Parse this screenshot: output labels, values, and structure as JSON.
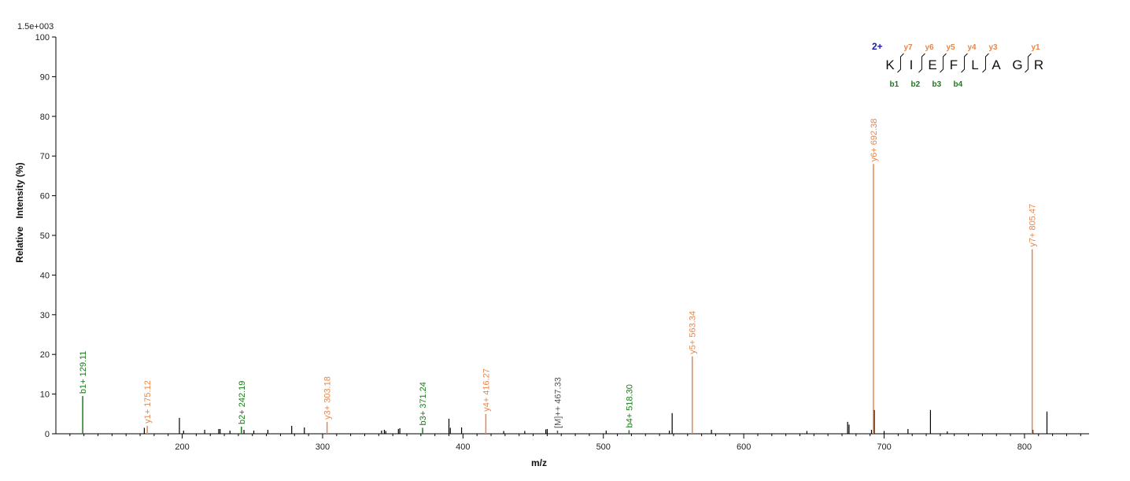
{
  "chart_data": {
    "type": "bar",
    "title": "",
    "scale_label": "1.5e+003",
    "xlabel": "m/z",
    "ylabel": "Relative   Intensity (%)",
    "xlim": [
      110,
      846
    ],
    "ylim": [
      0,
      100
    ],
    "x_ticks": [
      200,
      300,
      400,
      500,
      600,
      700,
      800
    ],
    "y_ticks": [
      0,
      10,
      20,
      30,
      40,
      50,
      60,
      70,
      80,
      90,
      100
    ],
    "colors": {
      "b_ion": "#1a7a1a",
      "y_ion": "#e8864a",
      "precursor": "#555555",
      "unassigned": "#000000",
      "charge": "#1a1aaa"
    },
    "annotated_peaks": [
      {
        "mz": 129.11,
        "intensity": 9.5,
        "ion": "b",
        "label": "b1+ 129.11"
      },
      {
        "mz": 175.12,
        "intensity": 2.0,
        "ion": "y",
        "label": "y1+ 175.12"
      },
      {
        "mz": 242.19,
        "intensity": 1.8,
        "ion": "b",
        "label": "b2+ 242.19"
      },
      {
        "mz": 303.18,
        "intensity": 3.0,
        "ion": "y",
        "label": "y3+ 303.18"
      },
      {
        "mz": 371.24,
        "intensity": 1.5,
        "ion": "b",
        "label": "b3+ 371.24"
      },
      {
        "mz": 416.27,
        "intensity": 5.0,
        "ion": "y",
        "label": "y4+ 416.27"
      },
      {
        "mz": 467.33,
        "intensity": 0.8,
        "ion": "precursor",
        "label": "[M]++ 467.33"
      },
      {
        "mz": 518.3,
        "intensity": 0.9,
        "ion": "b",
        "label": "b4+ 518.30"
      },
      {
        "mz": 563.34,
        "intensity": 19.5,
        "ion": "y",
        "label": "y5+ 563.34"
      },
      {
        "mz": 692.38,
        "intensity": 68.0,
        "ion": "y",
        "label": "y6+ 692.38"
      },
      {
        "mz": 805.47,
        "intensity": 46.5,
        "ion": "y",
        "label": "y7+ 805.47"
      }
    ],
    "other_peaks": [
      {
        "mz": 173,
        "intensity": 1.5
      },
      {
        "mz": 198,
        "intensity": 4.0
      },
      {
        "mz": 201,
        "intensity": 0.8
      },
      {
        "mz": 216,
        "intensity": 1.0
      },
      {
        "mz": 226,
        "intensity": 1.2
      },
      {
        "mz": 227,
        "intensity": 1.2
      },
      {
        "mz": 234,
        "intensity": 0.8
      },
      {
        "mz": 244,
        "intensity": 1.0
      },
      {
        "mz": 251,
        "intensity": 0.8
      },
      {
        "mz": 261,
        "intensity": 1.0
      },
      {
        "mz": 278,
        "intensity": 2.0
      },
      {
        "mz": 287,
        "intensity": 1.6
      },
      {
        "mz": 342,
        "intensity": 0.8
      },
      {
        "mz": 344,
        "intensity": 1.0
      },
      {
        "mz": 345,
        "intensity": 0.7
      },
      {
        "mz": 354,
        "intensity": 1.2
      },
      {
        "mz": 355,
        "intensity": 1.4
      },
      {
        "mz": 390,
        "intensity": 3.8
      },
      {
        "mz": 391,
        "intensity": 1.5
      },
      {
        "mz": 399,
        "intensity": 1.6
      },
      {
        "mz": 429,
        "intensity": 0.7
      },
      {
        "mz": 444,
        "intensity": 0.7
      },
      {
        "mz": 459,
        "intensity": 1.1
      },
      {
        "mz": 460,
        "intensity": 1.2
      },
      {
        "mz": 502,
        "intensity": 0.8
      },
      {
        "mz": 547,
        "intensity": 0.8
      },
      {
        "mz": 549,
        "intensity": 5.2
      },
      {
        "mz": 577,
        "intensity": 1.0
      },
      {
        "mz": 645,
        "intensity": 0.7
      },
      {
        "mz": 674,
        "intensity": 3.0
      },
      {
        "mz": 675,
        "intensity": 2.3
      },
      {
        "mz": 691,
        "intensity": 1.0
      },
      {
        "mz": 693,
        "intensity": 6.0
      },
      {
        "mz": 700,
        "intensity": 0.7
      },
      {
        "mz": 717,
        "intensity": 1.2
      },
      {
        "mz": 733,
        "intensity": 6.0
      },
      {
        "mz": 745,
        "intensity": 0.6
      },
      {
        "mz": 806,
        "intensity": 1.0
      },
      {
        "mz": 816,
        "intensity": 5.6
      }
    ],
    "sequence_map": {
      "charge": "2+",
      "residues": [
        "K",
        "I",
        "E",
        "F",
        "L",
        "A",
        "G",
        "R"
      ],
      "y_labels": [
        "y7",
        "y6",
        "y5",
        "y4",
        "y3",
        "y1"
      ],
      "b_labels": [
        "b1",
        "b2",
        "b3",
        "b4"
      ]
    }
  }
}
